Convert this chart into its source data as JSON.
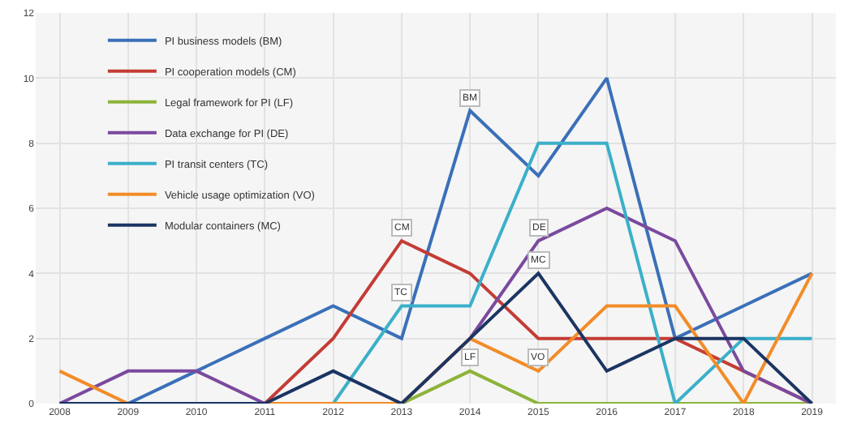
{
  "chart_data": {
    "type": "line",
    "x": [
      2008,
      2009,
      2010,
      2011,
      2012,
      2013,
      2014,
      2015,
      2016,
      2017,
      2018,
      2019
    ],
    "series": [
      {
        "name": "PI business models (BM)",
        "color": "#3a70b8",
        "values": [
          0,
          0,
          1,
          2,
          3,
          2,
          9,
          7,
          10,
          2,
          3,
          4
        ]
      },
      {
        "name": "PI cooperation models (CM)",
        "color": "#c43c35",
        "values": [
          null,
          null,
          0,
          0,
          2,
          5,
          4,
          2,
          2,
          2,
          1,
          0
        ]
      },
      {
        "name": "Legal framework for PI (LF)",
        "color": "#8db33a",
        "values": [
          null,
          null,
          null,
          null,
          0,
          0,
          1,
          0,
          0,
          0,
          0,
          0
        ]
      },
      {
        "name": "Data exchange for PI (DE)",
        "color": "#7a4a9e",
        "values": [
          0,
          1,
          1,
          0,
          0,
          0,
          2,
          5,
          6,
          5,
          1,
          0
        ]
      },
      {
        "name": "PI transit centers (TC)",
        "color": "#3bb0c9",
        "values": [
          0,
          0,
          0,
          0,
          0,
          3,
          3,
          8,
          8,
          0,
          2,
          2
        ]
      },
      {
        "name": "Vehicle usage optimization (VO)",
        "color": "#f28c28",
        "values": [
          1,
          0,
          0,
          0,
          0,
          0,
          2,
          1,
          3,
          3,
          0,
          4
        ]
      },
      {
        "name": "Modular containers (MC)",
        "color": "#1b3563",
        "values": [
          0,
          0,
          0,
          0,
          1,
          0,
          2,
          4,
          1,
          2,
          2,
          0
        ]
      }
    ],
    "annotations": [
      {
        "text": "BM",
        "x": 2014,
        "y": 9
      },
      {
        "text": "CM",
        "x": 2013,
        "y": 5
      },
      {
        "text": "TC",
        "x": 2013,
        "y": 3
      },
      {
        "text": "DE",
        "x": 2015,
        "y": 5
      },
      {
        "text": "MC",
        "x": 2015,
        "y": 4
      },
      {
        "text": "LF",
        "x": 2014,
        "y": 1
      },
      {
        "text": "VO",
        "x": 2015,
        "y": 1
      }
    ],
    "xlim": [
      2007.65,
      2019.35
    ],
    "xticks": [
      2008,
      2009,
      2010,
      2011,
      2012,
      2013,
      2014,
      2015,
      2016,
      2017,
      2018,
      2019
    ],
    "ylim": [
      0,
      12
    ],
    "yticks": [
      0,
      2,
      4,
      6,
      8,
      10,
      12
    ],
    "grid": true,
    "legend": "top left",
    "marker": "none",
    "line_style": "solid"
  }
}
